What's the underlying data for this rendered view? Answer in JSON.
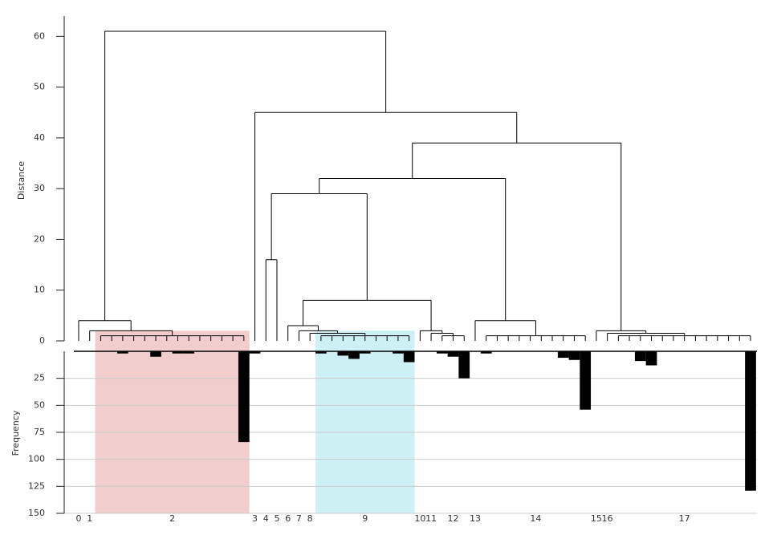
{
  "chart_data": {
    "type": "dendrogram",
    "ylabel": "Distance",
    "ylim": [
      0,
      64
    ],
    "yticks": [
      0,
      10,
      20,
      30,
      40,
      50,
      60
    ],
    "y2label": "Frequency",
    "y2lim": [
      0,
      150
    ],
    "y2ticks": [
      25,
      50,
      75,
      100,
      125,
      150
    ],
    "line_color": "#000000",
    "bar_color": "#000000",
    "grid": true,
    "frequencies": [
      0,
      0,
      0,
      0,
      2,
      0,
      0,
      5,
      0,
      2,
      2,
      0,
      0,
      0,
      0,
      84,
      2,
      0,
      0,
      0,
      0,
      0,
      2,
      0,
      4,
      7,
      2,
      0,
      0,
      2,
      10,
      0,
      0,
      2,
      5,
      25,
      0,
      2,
      0,
      0,
      0,
      0,
      0,
      0,
      6,
      8,
      54,
      0,
      0,
      0,
      0,
      9,
      13,
      0,
      0,
      0,
      0,
      0,
      0,
      0,
      0,
      129
    ],
    "clusters": [
      {
        "label": "0",
        "size": 1
      },
      {
        "label": "1",
        "size": 1
      },
      {
        "label": "2",
        "size": 14
      },
      {
        "label": "3",
        "size": 1
      },
      {
        "label": "4",
        "size": 1
      },
      {
        "label": "5",
        "size": 1
      },
      {
        "label": "6",
        "size": 1
      },
      {
        "label": "7",
        "size": 1
      },
      {
        "label": "8",
        "size": 1
      },
      {
        "label": "9",
        "size": 9
      },
      {
        "label": "10",
        "size": 1
      },
      {
        "label": "11",
        "size": 1
      },
      {
        "label": "12",
        "size": 3
      },
      {
        "label": "13",
        "size": 1
      },
      {
        "label": "14",
        "size": 10
      },
      {
        "label": "15",
        "size": 1
      },
      {
        "label": "16",
        "size": 1
      },
      {
        "label": "17",
        "size": 13
      }
    ],
    "highlights": [
      {
        "cluster": 2,
        "height": 2,
        "color": "#f2cdcd"
      },
      {
        "cluster": 9,
        "height": 2,
        "color": "#ccf0f4"
      }
    ],
    "links": [
      {
        "children": [
          2,
          3,
          4,
          5,
          6,
          7,
          8,
          9,
          10,
          11,
          12,
          13,
          14,
          15
        ],
        "height": 1
      },
      {
        "children": [
          1,
          62
        ],
        "height": 2
      },
      {
        "children": [
          0,
          63
        ],
        "height": 4
      },
      {
        "children": [
          17,
          18
        ],
        "height": 16
      },
      {
        "children": [
          22,
          23,
          24,
          25,
          26,
          27,
          28,
          29,
          30
        ],
        "height": 1
      },
      {
        "children": [
          21,
          66
        ],
        "height": 1.5
      },
      {
        "children": [
          20,
          67
        ],
        "height": 2
      },
      {
        "children": [
          19,
          68
        ],
        "height": 3
      },
      {
        "children": [
          33,
          34,
          35
        ],
        "height": 1
      },
      {
        "children": [
          32,
          70
        ],
        "height": 1.5
      },
      {
        "children": [
          31,
          71
        ],
        "height": 2
      },
      {
        "children": [
          69,
          72
        ],
        "height": 8
      },
      {
        "children": [
          65,
          73
        ],
        "height": 29
      },
      {
        "children": [
          37,
          38,
          39,
          40,
          41,
          42,
          43,
          44,
          45,
          46
        ],
        "height": 1
      },
      {
        "children": [
          36,
          75
        ],
        "height": 4
      },
      {
        "children": [
          74,
          76
        ],
        "height": 32
      },
      {
        "children": [
          49,
          50,
          51,
          52,
          53,
          54,
          55,
          56,
          57,
          58,
          59,
          60,
          61
        ],
        "height": 1
      },
      {
        "children": [
          48,
          78
        ],
        "height": 1.5
      },
      {
        "children": [
          47,
          79
        ],
        "height": 2
      },
      {
        "children": [
          77,
          80
        ],
        "height": 39
      },
      {
        "children": [
          16,
          81
        ],
        "height": 45
      },
      {
        "children": [
          64,
          82
        ],
        "height": 61
      }
    ]
  }
}
